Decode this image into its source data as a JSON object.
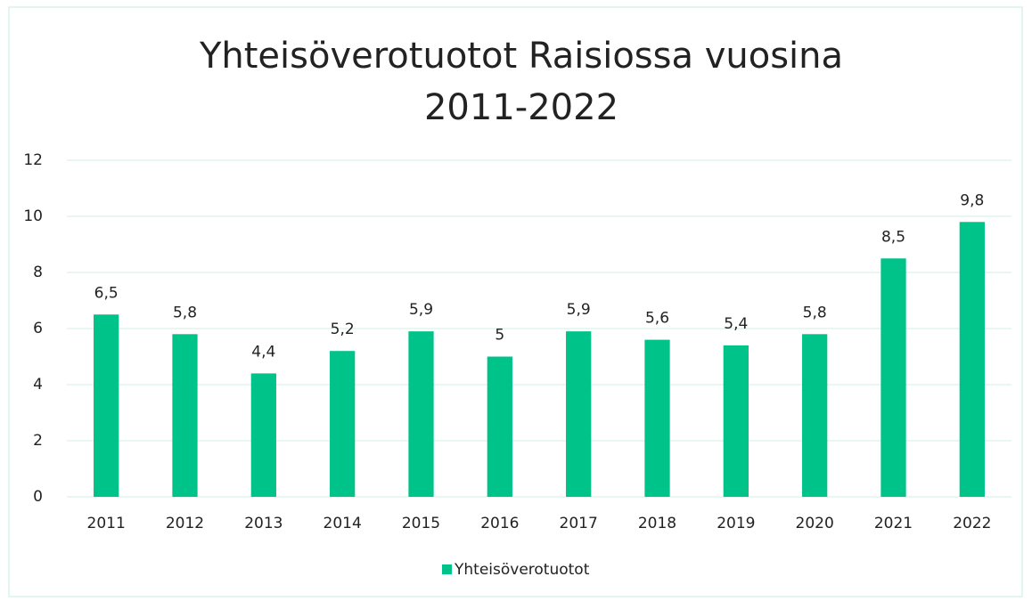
{
  "chart_data": {
    "type": "bar",
    "title": "Yhteisöverotuotot Raisiossa vuosina 2011-2022",
    "categories": [
      "2011",
      "2012",
      "2013",
      "2014",
      "2015",
      "2016",
      "2017",
      "2018",
      "2019",
      "2020",
      "2021",
      "2022"
    ],
    "series": [
      {
        "name": "Yhteisöverotuotot",
        "color": "#00c389",
        "values": [
          6.5,
          5.8,
          4.4,
          5.2,
          5.9,
          5,
          5.9,
          5.6,
          5.4,
          5.8,
          8.5,
          9.8
        ],
        "value_labels": [
          "6,5",
          "5,8",
          "4,4",
          "5,2",
          "5,9",
          "5",
          "5,9",
          "5,6",
          "5,4",
          "5,8",
          "8,5",
          "9,8"
        ]
      }
    ],
    "ylim": [
      0,
      12
    ],
    "yticks": [
      0,
      2,
      4,
      6,
      8,
      10,
      12
    ],
    "grid": true,
    "legend": "bottom"
  }
}
